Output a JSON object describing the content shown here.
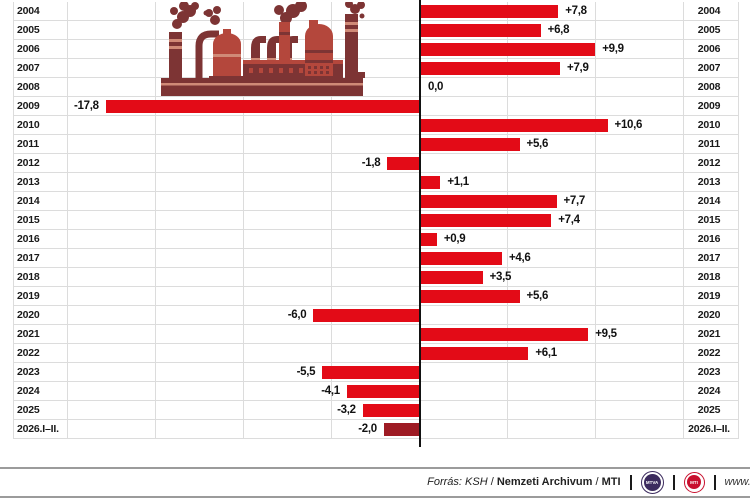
{
  "chart_data": {
    "type": "bar",
    "orientation": "horizontal-diverging",
    "title": "",
    "unit": "percent (year-on-year change)",
    "categories": [
      "2004",
      "2005",
      "2006",
      "2007",
      "2008",
      "2009",
      "2010",
      "2011",
      "2012",
      "2013",
      "2014",
      "2015",
      "2016",
      "2017",
      "2018",
      "2019",
      "2020",
      "2021",
      "2022",
      "2023",
      "2024",
      "2025",
      "2026.I–II."
    ],
    "values": [
      7.8,
      6.8,
      9.9,
      7.9,
      0.0,
      -17.8,
      10.6,
      5.6,
      -1.8,
      1.1,
      7.7,
      7.4,
      0.9,
      4.6,
      3.5,
      5.6,
      -6.0,
      9.5,
      6.1,
      -5.5,
      -4.1,
      -3.2,
      -2.0
    ],
    "value_labels": [
      "+7,8",
      "+6,8",
      "+9,9",
      "+7,9",
      "0,0",
      "-17,8",
      "+10,6",
      "+5,6",
      "-1,8",
      "+1,1",
      "+7,7",
      "+7,4",
      "+0,9",
      "+4,6",
      "+3,5",
      "+5,6",
      "-6,0",
      "+9,5",
      "+6,1",
      "-5,5",
      "-4,1",
      "-3,2",
      "-2,0"
    ],
    "xlim": [
      -23,
      18.2
    ],
    "grid_step": 5,
    "legend_position": "none",
    "grid": "on",
    "bar_color": "#e30b17",
    "bar_color_latest": "#9e1b24",
    "axis_color": "#121212",
    "grid_color": "#dcdcdc"
  },
  "footer": {
    "source": {
      "italic_part": "Forrás: KSH",
      "separator1": "/",
      "bold_part1": "Nemzeti Archivum",
      "separator2": "/",
      "bold_part2": "MTI"
    },
    "mtva_label": "MTVA",
    "mti_label": "MTI",
    "website": "www.m"
  }
}
